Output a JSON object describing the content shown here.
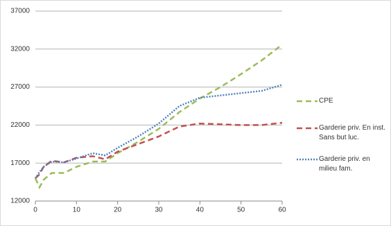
{
  "chart_data": {
    "type": "line",
    "x": [
      0,
      1,
      2,
      4,
      7,
      10,
      14,
      17,
      20,
      25,
      30,
      35,
      40,
      45,
      50,
      55,
      60
    ],
    "series": [
      {
        "name": "CPE",
        "color": "#9bbb59",
        "dash": "8,5",
        "values": [
          15000,
          13800,
          14800,
          15700,
          15700,
          16500,
          17200,
          17200,
          18300,
          19800,
          21500,
          23700,
          25500,
          27000,
          28700,
          30500,
          32600
        ]
      },
      {
        "name": "Garderie priv. En inst. Sans but luc.",
        "color": "#c0504d",
        "dash": "8,5",
        "values": [
          15000,
          15500,
          16500,
          17300,
          17100,
          17700,
          17900,
          17500,
          18500,
          19500,
          20500,
          21800,
          22200,
          22100,
          22000,
          22000,
          22300
        ]
      },
      {
        "name": "Garderie priv. en milieu fam.",
        "color": "#4f81bd",
        "dash": "2,2",
        "values": [
          15000,
          15800,
          16500,
          17200,
          17100,
          17600,
          18300,
          18000,
          19000,
          20500,
          22200,
          24500,
          25600,
          25900,
          26200,
          26500,
          27300
        ]
      }
    ],
    "xlim": [
      0,
      60
    ],
    "xticks": [
      0,
      10,
      20,
      30,
      40,
      50,
      60
    ],
    "ylim": [
      12000,
      37000
    ],
    "yticks": [
      12000,
      17000,
      22000,
      27000,
      32000,
      37000
    ],
    "grid": true,
    "legend": "right"
  }
}
